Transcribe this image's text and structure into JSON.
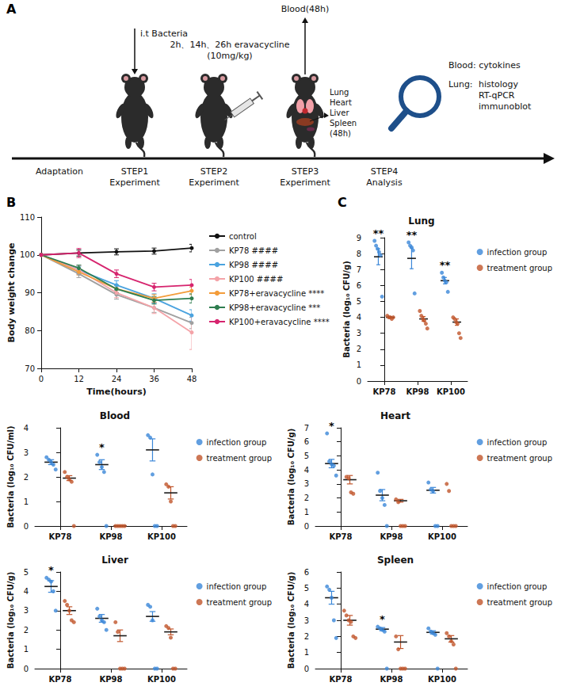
{
  "panels": [
    "A",
    "B",
    "C"
  ],
  "diagram": {
    "steps": [
      [
        "Adaptation"
      ],
      [
        "STEP1",
        "Experiment"
      ],
      [
        "STEP2",
        "Experiment"
      ],
      [
        "STEP3",
        "Experiment"
      ],
      [
        "STEP4",
        "Analysis"
      ]
    ],
    "infection": "i.t Bacteria",
    "treatment": [
      "2h、14h、26h eravacycline",
      "(10mg/kg)"
    ],
    "blood": "Blood(48h)",
    "organs": [
      "Lung",
      "Heart",
      "Liver",
      "Spleen",
      "(48h)"
    ],
    "analysis": {
      "blood": "Blood: cytokines",
      "lung_label": "Lung:",
      "lung_items": [
        "histology",
        "RT-qPCR",
        "immunoblot"
      ]
    }
  },
  "chart_data": [
    {
      "type": "line",
      "y_label": "Body weight change",
      "x_label": "Time(hours)",
      "x": [
        0,
        12,
        24,
        36,
        48
      ],
      "xlim": [
        0,
        48
      ],
      "xticks": [
        0,
        12,
        24,
        36,
        48
      ],
      "ylim": [
        70,
        110
      ],
      "yticks": [
        70,
        80,
        90,
        100,
        110
      ],
      "grid": false,
      "legend": "right",
      "marker": "circle",
      "series": [
        {
          "name": "control",
          "color": "#111111",
          "values": [
            100,
            100.5,
            100.8,
            101,
            101.8
          ],
          "errors": [
            0,
            0.8,
            0.8,
            0.8,
            1.0
          ]
        },
        {
          "name": "KP78 ####",
          "color": "#a0a0a0",
          "values": [
            100,
            95,
            89.5,
            86,
            82
          ],
          "errors": [
            0,
            1.0,
            1.2,
            1.2,
            1.5
          ]
        },
        {
          "name": "KP98 ####",
          "color": "#4aa3df",
          "values": [
            100,
            96,
            92,
            88.5,
            84
          ],
          "errors": [
            0,
            1.0,
            1.2,
            1.2,
            1.5
          ]
        },
        {
          "name": "KP100 ####",
          "color": "#f4a3a8",
          "values": [
            100,
            96,
            90,
            86,
            79.5
          ],
          "errors": [
            0,
            1.2,
            1.3,
            1.5,
            4.5
          ]
        },
        {
          "name": "KP78+eravacycline ****",
          "color": "#f39c3a",
          "values": [
            100,
            95.5,
            91,
            88.5,
            90.5
          ],
          "errors": [
            0,
            0.8,
            1.0,
            1.0,
            1.0
          ]
        },
        {
          "name": "KP98+eravacycline ***",
          "color": "#2e7d4f",
          "values": [
            100,
            96.5,
            91,
            88,
            88.5
          ],
          "errors": [
            0,
            0.8,
            1.0,
            1.0,
            1.2
          ]
        },
        {
          "name": "KP100+eravacycline ****",
          "color": "#d6246e",
          "values": [
            100,
            100.5,
            95,
            91.5,
            92
          ],
          "errors": [
            0,
            1.2,
            1.0,
            1.0,
            1.5
          ]
        }
      ]
    },
    {
      "type": "scatter",
      "title": "Lung",
      "y_label": "Bacteria (log₁₀ CFU/g)",
      "categories": [
        "KP78",
        "KP98",
        "KP100"
      ],
      "ylim": [
        0,
        9
      ],
      "yticks": [
        0,
        1,
        2,
        3,
        4,
        5,
        6,
        7,
        8,
        9
      ],
      "grid": false,
      "legend": "right",
      "marker": "circle",
      "annotations": [
        "**",
        "**",
        "**"
      ],
      "series": [
        {
          "name": "infection group",
          "color": "#3b87d8",
          "values": [
            [
              8.8,
              8.5,
              8.3,
              8.1,
              7.9,
              5.3
            ],
            [
              8.7,
              8.5,
              8.4,
              8.2,
              5.5
            ],
            [
              6.8,
              6.5,
              6.3,
              6.2,
              5.6
            ]
          ],
          "mean": [
            7.8,
            7.7,
            6.3
          ],
          "error": [
            0.5,
            0.65,
            0.2
          ]
        },
        {
          "name": "treatment group",
          "color": "#c0552b",
          "values": [
            [
              4.1,
              4.0,
              4.0,
              3.9,
              4.0
            ],
            [
              4.4,
              4.1,
              3.9,
              3.8,
              3.6,
              3.3
            ],
            [
              4.0,
              3.9,
              3.7,
              3.6,
              3.0,
              2.7
            ]
          ],
          "mean": [
            4.0,
            3.9,
            3.7
          ],
          "error": [
            0.05,
            0.15,
            0.2
          ]
        }
      ]
    },
    {
      "type": "scatter",
      "title": "Blood",
      "y_label": "Bacteria (log₁₀ CFU/ml)",
      "categories": [
        "KP78",
        "KP98",
        "KP100"
      ],
      "ylim": [
        0,
        4
      ],
      "yticks": [
        0,
        1,
        2,
        3,
        4
      ],
      "grid": false,
      "legend": "right",
      "marker": "circle",
      "annotations": [
        null,
        "*",
        null
      ],
      "series": [
        {
          "name": "infection group",
          "color": "#3b87d8",
          "values": [
            [
              2.8,
              2.7,
              2.6,
              2.5,
              2.3
            ],
            [
              2.9,
              2.6,
              2.4,
              2.2,
              0
            ],
            [
              3.7,
              3.6,
              2.1,
              0,
              0
            ]
          ],
          "mean": [
            2.6,
            2.5,
            3.1
          ],
          "error": [
            0.1,
            0.2,
            0.45
          ]
        },
        {
          "name": "treatment group",
          "color": "#c0552b",
          "values": [
            [
              2.2,
              2.0,
              1.9,
              1.8,
              0
            ],
            [
              0,
              0,
              0,
              0,
              0
            ],
            [
              1.7,
              1.6,
              1.0,
              0,
              0
            ]
          ],
          "mean": [
            1.95,
            0,
            1.35
          ],
          "error": [
            0.1,
            0,
            0.25
          ]
        }
      ]
    },
    {
      "type": "scatter",
      "title": "Heart",
      "y_label": "Bacteria (log₁₀ CFU/g)",
      "categories": [
        "KP78",
        "KP98",
        "KP100"
      ],
      "ylim": [
        0,
        7
      ],
      "yticks": [
        0,
        1,
        2,
        3,
        4,
        5,
        6,
        7
      ],
      "grid": false,
      "legend": "right",
      "marker": "circle",
      "annotations": [
        "*",
        null,
        null
      ],
      "series": [
        {
          "name": "infection group",
          "color": "#3b87d8",
          "values": [
            [
              6.6,
              4.6,
              4.4,
              4.3,
              3.6
            ],
            [
              3.8,
              2.5,
              2.0,
              1.5,
              0
            ],
            [
              3.1,
              2.6,
              2.5,
              0,
              0
            ]
          ],
          "mean": [
            4.45,
            2.2,
            2.55
          ],
          "error": [
            0.3,
            0.4,
            0.2
          ]
        },
        {
          "name": "treatment group",
          "color": "#c0552b",
          "values": [
            [
              3.5,
              3.4,
              2.4,
              2.3
            ],
            [
              1.9,
              1.7,
              0,
              0,
              0
            ],
            [
              3.0,
              2.5,
              0,
              0,
              0
            ]
          ],
          "mean": [
            3.3,
            1.8,
            null
          ],
          "error": [
            0.3,
            0.1,
            null
          ]
        }
      ]
    },
    {
      "type": "scatter",
      "title": "Liver",
      "y_label": "Bacteria (log₁₀ CFU/g)",
      "categories": [
        "KP78",
        "KP98",
        "KP100"
      ],
      "ylim": [
        0,
        5
      ],
      "yticks": [
        0,
        1,
        2,
        3,
        4,
        5
      ],
      "grid": false,
      "legend": "right",
      "marker": "circle",
      "annotations": [
        "*",
        null,
        null
      ],
      "series": [
        {
          "name": "infection group",
          "color": "#3b87d8",
          "values": [
            [
              4.7,
              4.6,
              4.5,
              4.0,
              3.0
            ],
            [
              3.1,
              2.7,
              2.5,
              2.4,
              2.0
            ],
            [
              3.3,
              3.2,
              2.5,
              0,
              0
            ]
          ],
          "mean": [
            4.25,
            2.6,
            2.7
          ],
          "error": [
            0.3,
            0.2,
            0.25
          ]
        },
        {
          "name": "treatment group",
          "color": "#c0552b",
          "values": [
            [
              3.5,
              3.3,
              3.0,
              2.5,
              2.4
            ],
            [
              2.4,
              1.9,
              0,
              0,
              0
            ],
            [
              2.2,
              2.1,
              1.6,
              0,
              0
            ]
          ],
          "mean": [
            3.0,
            1.7,
            1.9
          ],
          "error": [
            0.2,
            0.3,
            0.15
          ]
        }
      ]
    },
    {
      "type": "scatter",
      "title": "Spleen",
      "y_label": "Bacteria (log₁₀ CFU/g)",
      "categories": [
        "KP78",
        "KP98",
        "KP100"
      ],
      "ylim": [
        0,
        6
      ],
      "yticks": [
        0,
        1,
        2,
        3,
        4,
        5,
        6
      ],
      "grid": false,
      "legend": "right",
      "marker": "circle",
      "annotations": [
        null,
        "*",
        null
      ],
      "series": [
        {
          "name": "infection group",
          "color": "#3b87d8",
          "values": [
            [
              5.1,
              4.9,
              4.4,
              3.0,
              1.9
            ],
            [
              2.6,
              2.5,
              2.4,
              2.3,
              0
            ],
            [
              2.5,
              2.3,
              2.2,
              2.1,
              0
            ]
          ],
          "mean": [
            4.4,
            2.45,
            2.25
          ],
          "error": [
            0.4,
            0.1,
            0.1
          ]
        },
        {
          "name": "treatment group",
          "color": "#c0552b",
          "values": [
            [
              3.6,
              3.3,
              3.0,
              2.9,
              2.0,
              1.9
            ],
            [
              2.0,
              1.2,
              0,
              0,
              0
            ],
            [
              2.2,
              2.0,
              1.7,
              1.5,
              0
            ]
          ],
          "mean": [
            3.0,
            1.65,
            1.85
          ],
          "error": [
            0.3,
            0.4,
            0.2
          ]
        }
      ]
    }
  ]
}
